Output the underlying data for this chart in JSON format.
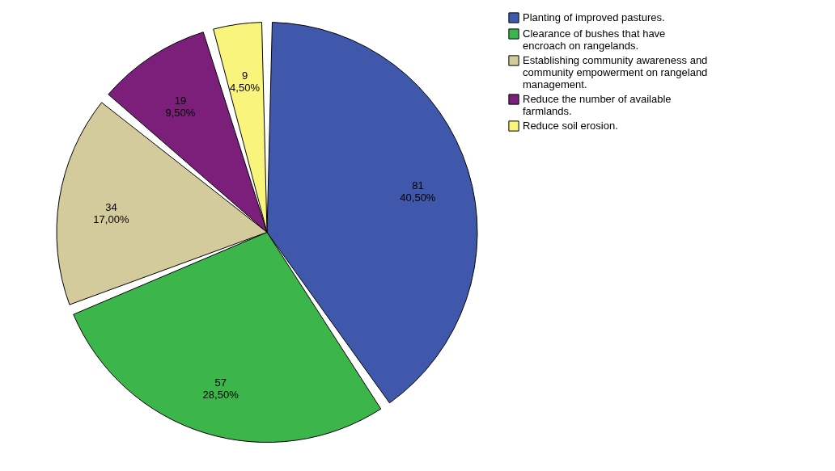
{
  "chart_data": {
    "type": "pie",
    "categories": [
      "Planting of improved pastures.",
      "Clearance of bushes that have encroach on rangelands.",
      "Establishing community awareness and community empowerment on rangeland management.",
      "Reduce the number of available farmlands.",
      "Reduce soil erosion."
    ],
    "values": [
      81,
      57,
      34,
      19,
      9
    ],
    "value_labels": [
      "81\n40,50%",
      "57\n28,50%",
      "34\n17,00%",
      "19\n9,50%",
      "9\n4,50%"
    ],
    "colors": [
      "#3f58ab",
      "#3cb64a",
      "#d4cb9c",
      "#7c1f7b",
      "#f8f47c"
    ],
    "legend": "top right"
  }
}
